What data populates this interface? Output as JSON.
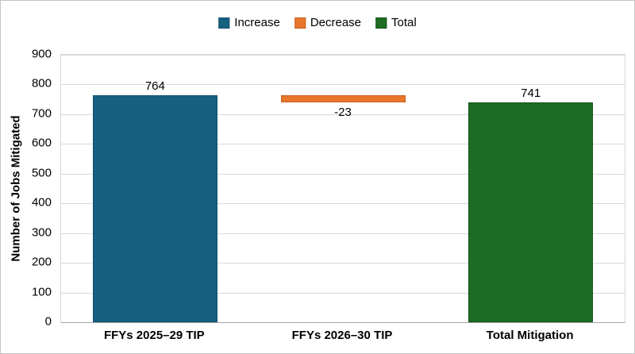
{
  "chart_data": {
    "type": "bar",
    "subtype": "waterfall",
    "title": "",
    "xlabel": "",
    "ylabel": "Number of Jobs Mitigated",
    "ylim": [
      0,
      900
    ],
    "ytick_step": 100,
    "grid": true,
    "legend_position": "top-center",
    "legend": [
      "Increase",
      "Decrease",
      "Total"
    ],
    "categories": [
      "FFYs 2025–29 TIP",
      "FFYs 2026–30 TIP",
      "Total Mitigation"
    ],
    "bars": [
      {
        "category": "FFYs 2025–29 TIP",
        "series": "Increase",
        "value": 764,
        "base": 0,
        "top": 764,
        "label": "764",
        "label_position": "above"
      },
      {
        "category": "FFYs 2026–30 TIP",
        "series": "Decrease",
        "value": -23,
        "base": 741,
        "top": 764,
        "label": "-23",
        "label_position": "below"
      },
      {
        "category": "Total Mitigation",
        "series": "Total",
        "value": 741,
        "base": 0,
        "top": 741,
        "label": "741",
        "label_position": "above"
      }
    ]
  },
  "style": {
    "series": {
      "Increase": {
        "fill": "#166080",
        "border": "#11506B"
      },
      "Decrease": {
        "fill": "#E8762B",
        "border": "#C7611F"
      },
      "Total": {
        "fill": "#1D6B24",
        "border": "#155419"
      }
    },
    "gridline": "#D9D9D9",
    "axis_line": "#A6A6A6",
    "frame_border": "#C6C6C6",
    "text": "#000000"
  }
}
